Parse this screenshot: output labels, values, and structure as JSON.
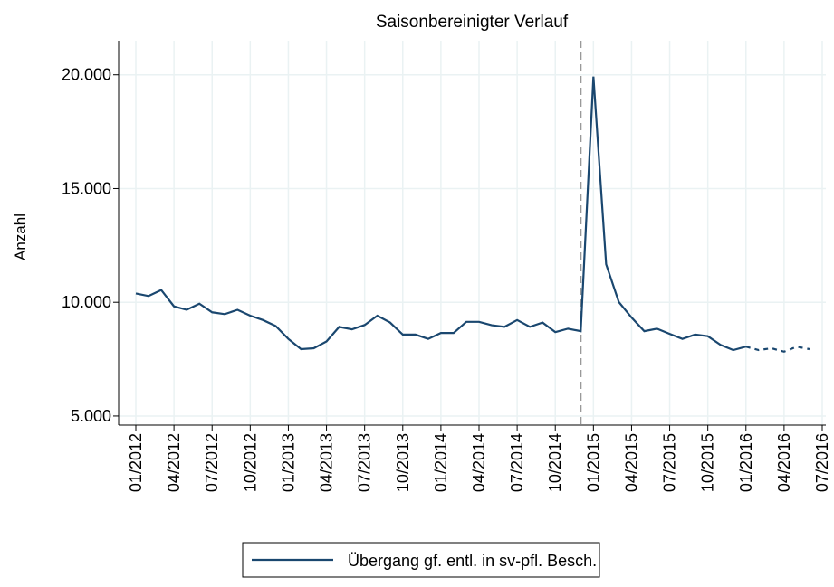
{
  "chart_data": {
    "type": "line",
    "title": "Saisonbereinigter Verlauf",
    "ylabel": "Anzahl",
    "categories": [
      "01/2012",
      null,
      null,
      "04/2012",
      null,
      null,
      "07/2012",
      null,
      null,
      "10/2012",
      null,
      null,
      "01/2013",
      null,
      null,
      "04/2013",
      null,
      null,
      "07/2013",
      null,
      null,
      "10/2013",
      null,
      null,
      "01/2014",
      null,
      null,
      "04/2014",
      null,
      null,
      "07/2014",
      null,
      null,
      "10/2014",
      null,
      null,
      "01/2015",
      null,
      null,
      "04/2015",
      null,
      null,
      "07/2015",
      null,
      null,
      "10/2015",
      null,
      null,
      "01/2016",
      null,
      null,
      "04/2016",
      null,
      null,
      "07/2016"
    ],
    "series": [
      {
        "name": "Übergang gf. entl. in sv-pfl. Besch.",
        "color": "#1a476f",
        "line_style": "solid",
        "values": [
          10390,
          10275,
          10540,
          9820,
          9670,
          9940,
          9560,
          9480,
          9670,
          9410,
          9220,
          8960,
          8390,
          7940,
          7980,
          8280,
          8920,
          8810,
          9000,
          9410,
          9110,
          8580,
          8580,
          8390,
          8650,
          8650,
          9140,
          9140,
          8990,
          8920,
          9220,
          8920,
          9110,
          8690,
          8840,
          8730,
          19920,
          11670,
          10010,
          9330,
          8730,
          8840,
          8610,
          8390,
          8580,
          8510,
          8130,
          7900,
          8050,
          null,
          null,
          null,
          null,
          null,
          null
        ]
      },
      {
        "color": "#1a476f",
        "line_style": "dashed",
        "values": [
          null,
          null,
          null,
          null,
          null,
          null,
          null,
          null,
          null,
          null,
          null,
          null,
          null,
          null,
          null,
          null,
          null,
          null,
          null,
          null,
          null,
          null,
          null,
          null,
          null,
          null,
          null,
          null,
          null,
          null,
          null,
          null,
          null,
          null,
          null,
          null,
          null,
          null,
          null,
          null,
          null,
          null,
          null,
          null,
          null,
          null,
          null,
          null,
          8050,
          7900,
          7980,
          7830,
          8050,
          7940,
          null
        ]
      }
    ],
    "vline": {
      "at": 35,
      "color": "#999999"
    },
    "ylim": [
      4600,
      21500
    ],
    "yticks": [
      {
        "value": 5000,
        "label": "5.000"
      },
      {
        "value": 10000,
        "label": "10.000"
      },
      {
        "value": 15000,
        "label": "15.000"
      },
      {
        "value": 20000,
        "label": "20.000"
      }
    ],
    "grid": true,
    "legend": "bottom"
  }
}
